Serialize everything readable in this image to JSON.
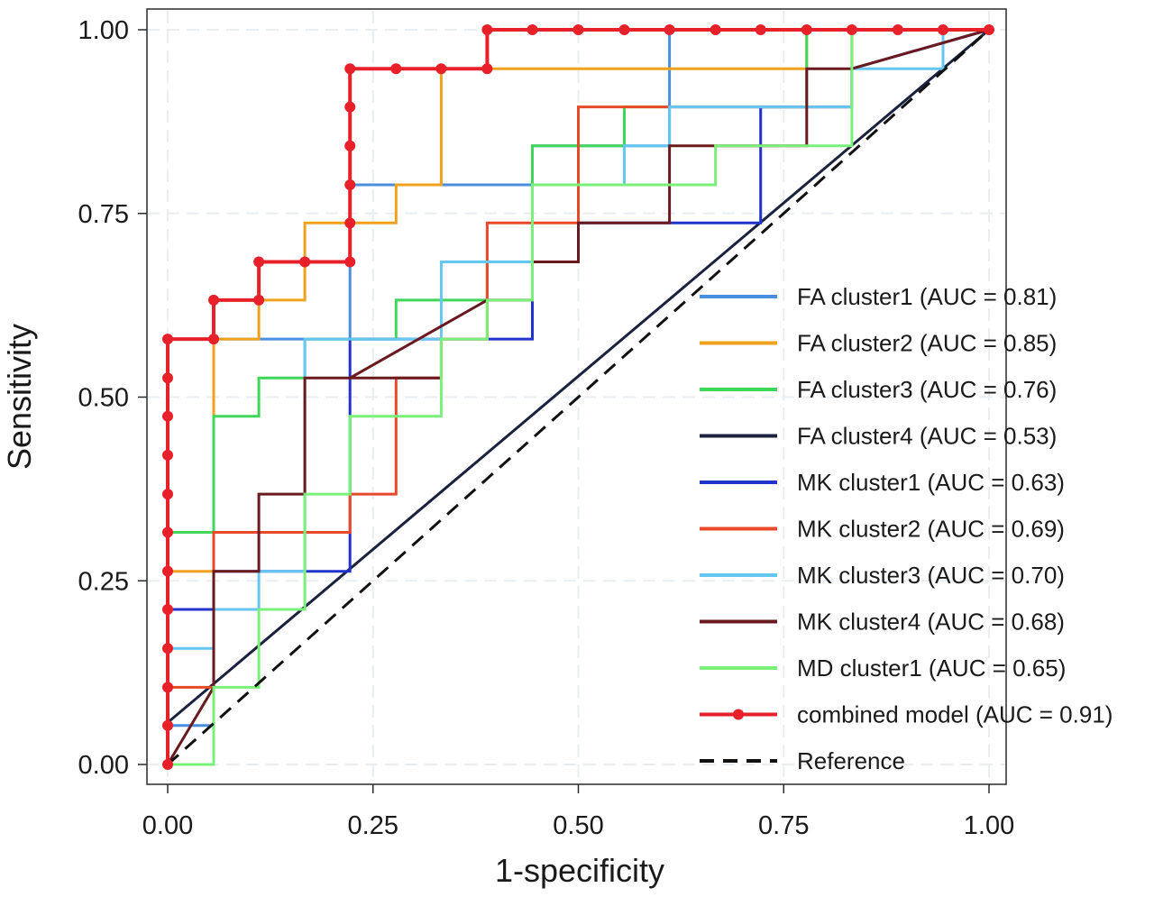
{
  "chart_data": {
    "type": "line",
    "title": "",
    "xlabel": "1-specificity",
    "ylabel": "Sensitivity",
    "xlim": [
      0,
      1
    ],
    "ylim": [
      0,
      1
    ],
    "xticks": [
      0,
      0.25,
      0.5,
      0.75,
      1
    ],
    "yticks": [
      0,
      0.25,
      0.5,
      0.75,
      1
    ],
    "xtick_labels": [
      "0.00",
      "0.25",
      "0.50",
      "0.75",
      "1.00"
    ],
    "ytick_labels": [
      "0.00",
      "0.25",
      "0.50",
      "0.75",
      "1.00"
    ],
    "grid": true,
    "legend_position": "right",
    "series": [
      {
        "name": "FA cluster1 (AUC = 0.81)",
        "color": "#4a8ee0",
        "dash": "solid",
        "markers": false,
        "points": [
          [
            0,
            0
          ],
          [
            0,
            0.053
          ],
          [
            0.056,
            0.053
          ],
          [
            0.056,
            0.579
          ],
          [
            0.222,
            0.579
          ],
          [
            0.222,
            0.789
          ],
          [
            0.444,
            0.789
          ],
          [
            0.444,
            0.842
          ],
          [
            0.611,
            0.842
          ],
          [
            0.611,
            0.947
          ],
          [
            0.611,
            1
          ],
          [
            1,
            1
          ]
        ]
      },
      {
        "name": "FA cluster2 (AUC = 0.85)",
        "color": "#f0a21e",
        "dash": "solid",
        "markers": false,
        "points": [
          [
            0,
            0
          ],
          [
            0,
            0.263
          ],
          [
            0.056,
            0.263
          ],
          [
            0.056,
            0.474
          ],
          [
            0.056,
            0.579
          ],
          [
            0.111,
            0.579
          ],
          [
            0.111,
            0.632
          ],
          [
            0.167,
            0.632
          ],
          [
            0.167,
            0.737
          ],
          [
            0.278,
            0.737
          ],
          [
            0.278,
            0.789
          ],
          [
            0.333,
            0.789
          ],
          [
            0.333,
            0.947
          ],
          [
            0.778,
            0.947
          ],
          [
            0.778,
            1
          ],
          [
            1,
            1
          ]
        ]
      },
      {
        "name": "FA cluster3 (AUC = 0.76)",
        "color": "#3fd65a",
        "dash": "solid",
        "markers": false,
        "points": [
          [
            0,
            0
          ],
          [
            0,
            0.316
          ],
          [
            0.056,
            0.316
          ],
          [
            0.056,
            0.474
          ],
          [
            0.111,
            0.474
          ],
          [
            0.111,
            0.526
          ],
          [
            0.167,
            0.526
          ],
          [
            0.167,
            0.579
          ],
          [
            0.278,
            0.579
          ],
          [
            0.278,
            0.632
          ],
          [
            0.389,
            0.632
          ],
          [
            0.389,
            0.684
          ],
          [
            0.444,
            0.684
          ],
          [
            0.444,
            0.842
          ],
          [
            0.556,
            0.842
          ],
          [
            0.556,
            0.895
          ],
          [
            0.778,
            0.895
          ],
          [
            0.778,
            1
          ],
          [
            1,
            1
          ]
        ]
      },
      {
        "name": "FA cluster4 (AUC = 0.53)",
        "color": "#1b2240",
        "dash": "solid",
        "markers": false,
        "points": [
          [
            0,
            0.057
          ],
          [
            1,
            1
          ]
        ]
      },
      {
        "name": "MK cluster1 (AUC = 0.63)",
        "color": "#2233cc",
        "dash": "solid",
        "markers": false,
        "points": [
          [
            0,
            0
          ],
          [
            0,
            0.211
          ],
          [
            0.056,
            0.211
          ],
          [
            0.056,
            0.263
          ],
          [
            0.222,
            0.263
          ],
          [
            0.222,
            0.526
          ],
          [
            0.222,
            0.579
          ],
          [
            0.444,
            0.579
          ],
          [
            0.444,
            0.684
          ],
          [
            0.5,
            0.684
          ],
          [
            0.5,
            0.737
          ],
          [
            0.722,
            0.737
          ],
          [
            0.722,
            0.895
          ],
          [
            0.833,
            0.895
          ],
          [
            0.833,
            0.947
          ],
          [
            1,
            1
          ]
        ]
      },
      {
        "name": "MK cluster2 (AUC = 0.69)",
        "color": "#e8492a",
        "dash": "solid",
        "markers": false,
        "points": [
          [
            0,
            0
          ],
          [
            0,
            0.105
          ],
          [
            0.056,
            0.105
          ],
          [
            0.056,
            0.316
          ],
          [
            0.222,
            0.316
          ],
          [
            0.222,
            0.368
          ],
          [
            0.278,
            0.368
          ],
          [
            0.278,
            0.526
          ],
          [
            0.333,
            0.526
          ],
          [
            0.333,
            0.579
          ],
          [
            0.389,
            0.579
          ],
          [
            0.389,
            0.737
          ],
          [
            0.444,
            0.737
          ],
          [
            0.5,
            0.737
          ],
          [
            0.5,
            0.895
          ],
          [
            0.833,
            0.895
          ],
          [
            0.833,
            1
          ],
          [
            1,
            1
          ]
        ]
      },
      {
        "name": "MK cluster3 (AUC = 0.70)",
        "color": "#66c6f2",
        "dash": "solid",
        "markers": false,
        "points": [
          [
            0,
            0
          ],
          [
            0,
            0.158
          ],
          [
            0.056,
            0.158
          ],
          [
            0.056,
            0.211
          ],
          [
            0.111,
            0.211
          ],
          [
            0.111,
            0.263
          ],
          [
            0.167,
            0.263
          ],
          [
            0.167,
            0.579
          ],
          [
            0.333,
            0.579
          ],
          [
            0.333,
            0.684
          ],
          [
            0.444,
            0.684
          ],
          [
            0.444,
            0.789
          ],
          [
            0.556,
            0.789
          ],
          [
            0.556,
            0.842
          ],
          [
            0.611,
            0.842
          ],
          [
            0.611,
            0.895
          ],
          [
            0.722,
            0.895
          ],
          [
            0.722,
            0.895
          ],
          [
            0.833,
            0.895
          ],
          [
            0.833,
            0.947
          ],
          [
            0.944,
            0.947
          ],
          [
            0.944,
            1
          ],
          [
            1,
            1
          ]
        ]
      },
      {
        "name": "MK cluster4 (AUC = 0.68)",
        "color": "#6a1a1f",
        "dash": "solid",
        "markers": false,
        "points": [
          [
            0,
            0
          ],
          [
            0.056,
            0.105
          ],
          [
            0.056,
            0.263
          ],
          [
            0.111,
            0.263
          ],
          [
            0.111,
            0.368
          ],
          [
            0.167,
            0.368
          ],
          [
            0.167,
            0.526
          ],
          [
            0.333,
            0.526
          ],
          [
            0.222,
            0.526
          ],
          [
            0.389,
            0.632
          ],
          [
            0.444,
            0.632
          ],
          [
            0.444,
            0.684
          ],
          [
            0.5,
            0.684
          ],
          [
            0.5,
            0.737
          ],
          [
            0.611,
            0.737
          ],
          [
            0.611,
            0.789
          ],
          [
            0.611,
            0.842
          ],
          [
            0.667,
            0.842
          ],
          [
            0.778,
            0.842
          ],
          [
            0.778,
            0.947
          ],
          [
            0.833,
            0.947
          ],
          [
            1,
            1
          ]
        ]
      },
      {
        "name": "MD cluster1 (AUC = 0.65)",
        "color": "#7af07a",
        "dash": "solid",
        "markers": false,
        "points": [
          [
            0,
            0
          ],
          [
            0.056,
            0
          ],
          [
            0.056,
            0.105
          ],
          [
            0.111,
            0.105
          ],
          [
            0.111,
            0.211
          ],
          [
            0.167,
            0.211
          ],
          [
            0.167,
            0.368
          ],
          [
            0.222,
            0.368
          ],
          [
            0.222,
            0.474
          ],
          [
            0.333,
            0.474
          ],
          [
            0.333,
            0.579
          ],
          [
            0.389,
            0.579
          ],
          [
            0.389,
            0.632
          ],
          [
            0.444,
            0.632
          ],
          [
            0.444,
            0.789
          ],
          [
            0.667,
            0.789
          ],
          [
            0.667,
            0.842
          ],
          [
            0.833,
            0.842
          ],
          [
            0.833,
            1
          ],
          [
            1,
            1
          ]
        ]
      },
      {
        "name": "combined model (AUC = 0.91)",
        "color": "#e8202a",
        "dash": "solid",
        "markers": true,
        "points": [
          [
            0,
            0
          ],
          [
            0,
            0.053
          ],
          [
            0,
            0.105
          ],
          [
            0,
            0.158
          ],
          [
            0,
            0.211
          ],
          [
            0,
            0.263
          ],
          [
            0,
            0.316
          ],
          [
            0,
            0.368
          ],
          [
            0,
            0.421
          ],
          [
            0,
            0.474
          ],
          [
            0,
            0.526
          ],
          [
            0,
            0.579
          ],
          [
            0.056,
            0.579
          ],
          [
            0.056,
            0.632
          ],
          [
            0.111,
            0.632
          ],
          [
            0.111,
            0.684
          ],
          [
            0.167,
            0.684
          ],
          [
            0.222,
            0.684
          ],
          [
            0.222,
            0.737
          ],
          [
            0.222,
            0.789
          ],
          [
            0.222,
            0.842
          ],
          [
            0.222,
            0.895
          ],
          [
            0.222,
            0.947
          ],
          [
            0.278,
            0.947
          ],
          [
            0.333,
            0.947
          ],
          [
            0.389,
            0.947
          ],
          [
            0.389,
            1
          ],
          [
            0.444,
            1
          ],
          [
            0.5,
            1
          ],
          [
            0.556,
            1
          ],
          [
            0.611,
            1
          ],
          [
            0.667,
            1
          ],
          [
            0.722,
            1
          ],
          [
            0.778,
            1
          ],
          [
            0.833,
            1
          ],
          [
            0.889,
            1
          ],
          [
            0.944,
            1
          ],
          [
            1,
            1
          ]
        ]
      },
      {
        "name": "Reference",
        "color": "#111111",
        "dash": "dashed",
        "markers": false,
        "points": [
          [
            0,
            0
          ],
          [
            1,
            1
          ]
        ]
      }
    ]
  }
}
